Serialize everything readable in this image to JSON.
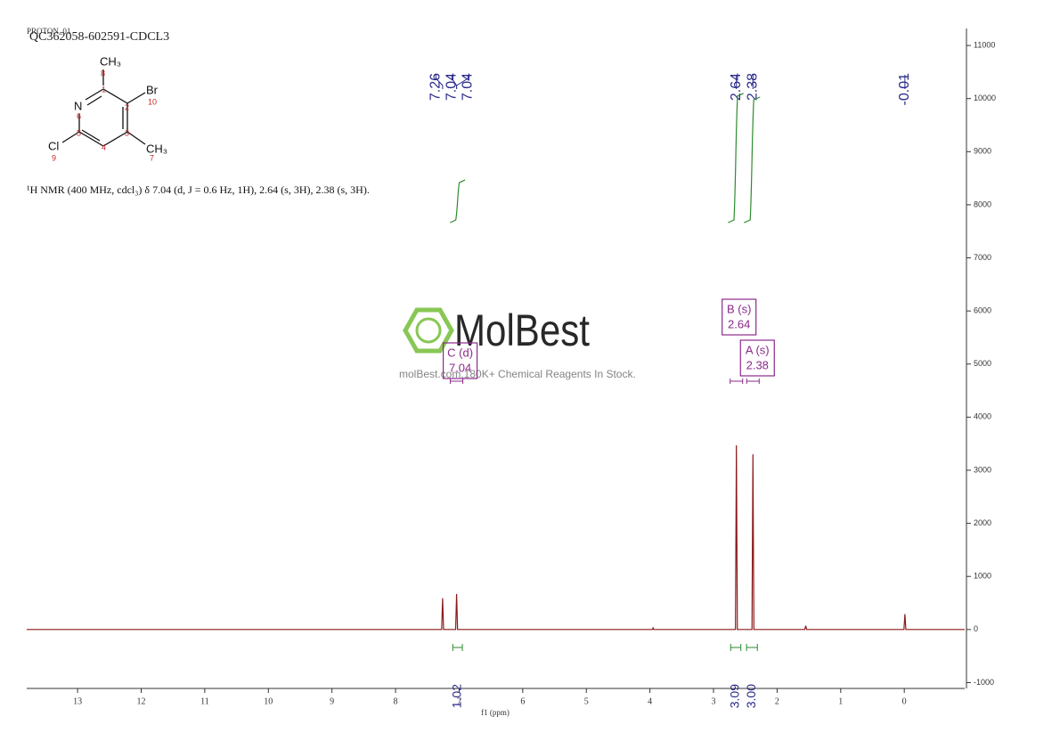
{
  "chart_data": {
    "type": "line",
    "subtitle": "PROTON_01",
    "title": "QC362058-602591-CDCL3",
    "description": "¹H NMR (400 MHz, cdcl₃) δ 7.04 (d, J = 0.6 Hz, 1H), 2.64 (s, 3H), 2.38 (s, 3H).",
    "xlabel": "f1 (ppm)",
    "color": "#8b1a1a",
    "x": [
      13.8,
      7.275,
      7.26,
      7.245,
      7.055,
      7.04,
      7.025,
      3.96,
      3.95,
      3.94,
      2.655,
      2.64,
      2.625,
      2.395,
      2.38,
      2.365,
      1.565,
      1.55,
      1.535,
      0.005,
      -0.01,
      -0.025,
      -0.95
    ],
    "values": [
      0,
      0,
      590,
      0,
      0,
      670,
      0,
      0,
      30,
      0,
      0,
      3470,
      0,
      0,
      3300,
      0,
      0,
      70,
      0,
      0,
      290,
      0,
      0
    ],
    "xlim": [
      13.8,
      -0.95
    ],
    "xticks": [
      13,
      12,
      11,
      10,
      9,
      8,
      7,
      6,
      5,
      4,
      3,
      2,
      1,
      0
    ],
    "ylim": [
      -1110,
      11320
    ],
    "yticks": [
      -1000,
      0,
      1000,
      2000,
      3000,
      4000,
      5000,
      6000,
      7000,
      8000,
      9000,
      10000,
      11000
    ],
    "peak_labels": [
      7.26,
      7.04,
      7.04,
      2.64,
      2.38,
      -0.01
    ],
    "integrals": {
      "ranges": [
        [
          7.1,
          6.95
        ],
        [
          2.73,
          2.57
        ],
        [
          2.48,
          2.31
        ]
      ],
      "values": [
        1.02,
        3.09,
        3
      ],
      "value_labels": [
        "1.02",
        "3.09",
        "3.00"
      ]
    },
    "multiplets": {
      "names": [
        "C (d)",
        "B (s)",
        "A (s)"
      ],
      "shifts": [
        7.04,
        2.64,
        2.38
      ]
    }
  },
  "structure": {
    "atoms": [
      "CH₃",
      "Br",
      "N",
      "Cl",
      "CH₃"
    ],
    "numbers": [
      "8",
      "1",
      "2",
      "10",
      "6",
      "3",
      "5",
      "4",
      "9",
      "7"
    ]
  },
  "watermark": {
    "brand": "MolBest",
    "tagline": "molBest.com,180K+ Chemical Reagents In Stock."
  }
}
